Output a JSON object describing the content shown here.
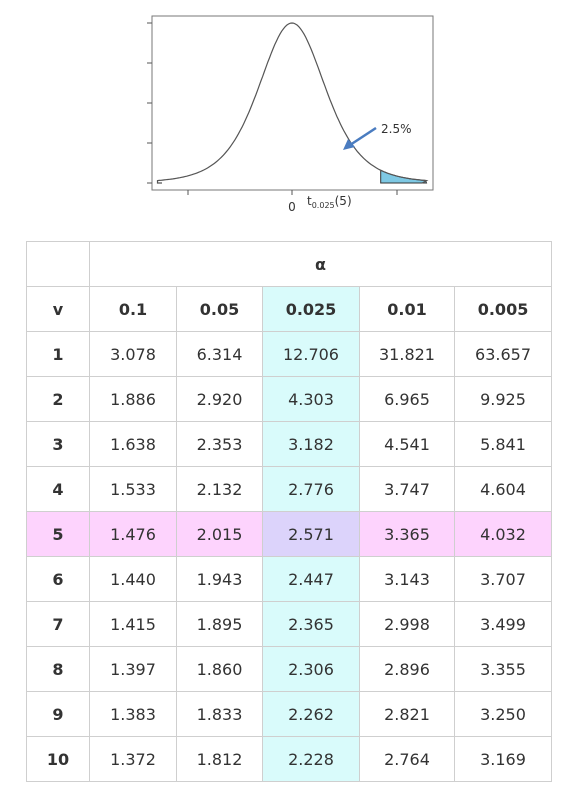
{
  "figure": {
    "zero_label": "0",
    "crit_main": "t",
    "crit_sub": "0.025",
    "crit_arg": "(5)",
    "tail_label": "2.5%",
    "colors": {
      "fill": "#7ec8e3",
      "arrow": "#4a7cc0",
      "curve": "#555555",
      "frame": "#777777"
    }
  },
  "table": {
    "alpha_label": "α",
    "v_label": "v",
    "columns": [
      "0.1",
      "0.05",
      "0.025",
      "0.01",
      "0.005"
    ],
    "highlight_column": "0.025",
    "highlight_row": "5",
    "colors": {
      "column_highlight": "#d9fbfb",
      "row_highlight": "#fdd3fd",
      "cross_highlight": "#dcd3fb"
    },
    "rows": [
      {
        "v": "1",
        "values": [
          "3.078",
          "6.314",
          "12.706",
          "31.821",
          "63.657"
        ]
      },
      {
        "v": "2",
        "values": [
          "1.886",
          "2.920",
          "4.303",
          "6.965",
          "9.925"
        ]
      },
      {
        "v": "3",
        "values": [
          "1.638",
          "2.353",
          "3.182",
          "4.541",
          "5.841"
        ]
      },
      {
        "v": "4",
        "values": [
          "1.533",
          "2.132",
          "2.776",
          "3.747",
          "4.604"
        ]
      },
      {
        "v": "5",
        "values": [
          "1.476",
          "2.015",
          "2.571",
          "3.365",
          "4.032"
        ]
      },
      {
        "v": "6",
        "values": [
          "1.440",
          "1.943",
          "2.447",
          "3.143",
          "3.707"
        ]
      },
      {
        "v": "7",
        "values": [
          "1.415",
          "1.895",
          "2.365",
          "2.998",
          "3.499"
        ]
      },
      {
        "v": "8",
        "values": [
          "1.397",
          "1.860",
          "2.306",
          "2.896",
          "3.355"
        ]
      },
      {
        "v": "9",
        "values": [
          "1.383",
          "1.833",
          "2.262",
          "2.821",
          "3.250"
        ]
      },
      {
        "v": "10",
        "values": [
          "1.372",
          "1.812",
          "2.228",
          "2.764",
          "3.169"
        ]
      }
    ]
  }
}
